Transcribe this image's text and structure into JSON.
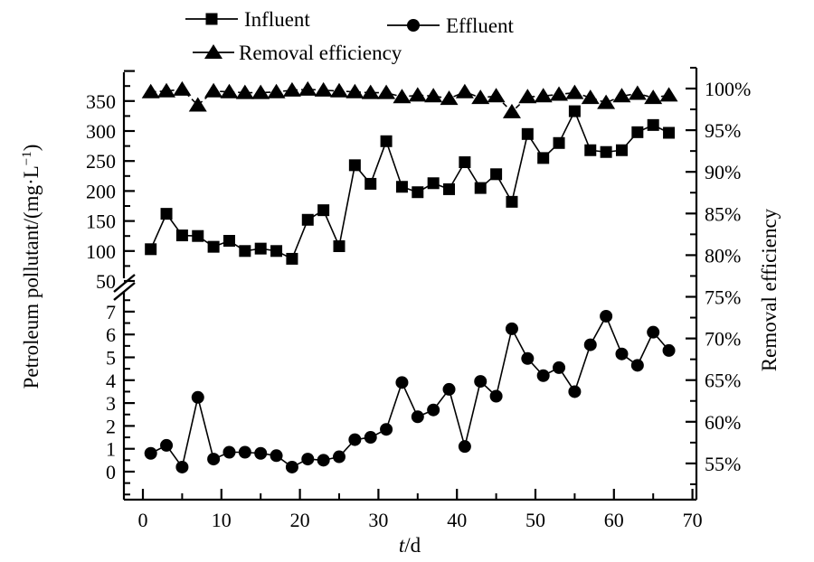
{
  "figure": {
    "ink_color": "#000000",
    "background_color": "#ffffff"
  },
  "chart_data": {
    "type": "line",
    "title": "",
    "xlabel": "t/d",
    "ylabel_left": "Petroleum pollutant/(mg·L⁻¹)",
    "ylabel_right": "Removal efficiency",
    "grid": false,
    "legend_position": "top-outside",
    "x_range": [
      0,
      70
    ],
    "left_axis_upper_range": [
      50,
      350
    ],
    "left_axis_lower_range": [
      0,
      7
    ],
    "left_axis_break_between": [
      7,
      50
    ],
    "right_axis_range": [
      55,
      100
    ],
    "x": [
      1,
      3,
      5,
      7,
      9,
      11,
      13,
      15,
      17,
      19,
      21,
      23,
      25,
      27,
      29,
      31,
      33,
      35,
      37,
      39,
      41,
      43,
      45,
      47,
      49,
      51,
      53,
      55,
      57,
      59,
      61,
      63,
      65,
      67
    ],
    "series": [
      {
        "name": "Influent",
        "marker": "square",
        "axis": "left-upper",
        "unit": "mg/L",
        "line": "solid",
        "values": [
          103,
          162,
          126,
          125,
          107,
          117,
          100,
          104,
          100,
          87,
          152,
          168,
          108,
          243,
          212,
          283,
          207,
          198,
          213,
          203,
          248,
          205,
          228,
          182,
          295,
          255,
          280,
          333,
          268,
          265,
          268,
          298,
          310,
          297
        ]
      },
      {
        "name": "Effluent",
        "marker": "circle",
        "axis": "left-lower",
        "unit": "mg/L",
        "line": "solid",
        "values": [
          0.8,
          1.15,
          0.2,
          3.25,
          0.55,
          0.85,
          0.85,
          0.8,
          0.7,
          0.2,
          0.55,
          0.5,
          0.65,
          1.4,
          1.5,
          1.85,
          3.9,
          2.4,
          2.7,
          3.6,
          1.1,
          3.95,
          3.3,
          6.25,
          4.95,
          4.2,
          4.55,
          3.5,
          5.55,
          6.8,
          5.15,
          4.65,
          6.1,
          5.3
        ]
      },
      {
        "name": "Removal efficiency",
        "marker": "triangle",
        "axis": "right",
        "unit": "%",
        "line": "dashed",
        "values": [
          99.6,
          99.7,
          99.9,
          98.0,
          99.7,
          99.6,
          99.5,
          99.5,
          99.6,
          99.8,
          99.9,
          99.8,
          99.7,
          99.6,
          99.5,
          99.5,
          99.0,
          99.2,
          99.1,
          98.8,
          99.6,
          98.9,
          99.1,
          97.2,
          99.0,
          99.1,
          99.3,
          99.5,
          98.9,
          98.3,
          99.1,
          99.4,
          98.9,
          99.2
        ]
      }
    ],
    "axes": {
      "x": {
        "title_italic": "t",
        "title_rest": "/d",
        "major": [
          0,
          10,
          20,
          30,
          40,
          50,
          60,
          70
        ],
        "labels": [
          "0",
          "10",
          "20",
          "30",
          "40",
          "50",
          "60",
          "70"
        ],
        "minor": [
          5,
          15,
          25,
          35,
          45,
          55,
          65
        ]
      },
      "left_upper": {
        "major": [
          50,
          100,
          150,
          200,
          250,
          300,
          350,
          400
        ],
        "labels": [
          "50",
          "100",
          "150",
          "200",
          "250",
          "300",
          "350",
          ""
        ],
        "minor": [
          75,
          125,
          175,
          225,
          275,
          325,
          375
        ]
      },
      "left_lower": {
        "major": [
          0,
          1,
          2,
          3,
          4,
          5,
          6,
          7
        ],
        "labels": [
          "0",
          "1",
          "2",
          "3",
          "4",
          "5",
          "6",
          "7"
        ],
        "minor": [
          -1,
          -0.5,
          0.5,
          1.5,
          2.5,
          3.5,
          4.5,
          5.5,
          6.5,
          7.5
        ]
      },
      "left_title": {
        "pre": "Petroleum pollutant/(mg·L",
        "sup": "−1",
        "post": ")"
      },
      "right": {
        "title": "Removal efficiency",
        "major": [
          55,
          60,
          65,
          70,
          75,
          80,
          85,
          90,
          95,
          100
        ],
        "labels": [
          "55%",
          "60%",
          "65%",
          "70%",
          "75%",
          "80%",
          "85%",
          "90%",
          "95%",
          "100%"
        ],
        "minor": [
          52.5,
          57.5,
          62.5,
          67.5,
          72.5,
          77.5,
          82.5,
          87.5,
          92.5,
          97.5,
          102.5
        ]
      }
    },
    "legend": [
      "Influent",
      "Effluent",
      "Removal efficiency"
    ]
  }
}
